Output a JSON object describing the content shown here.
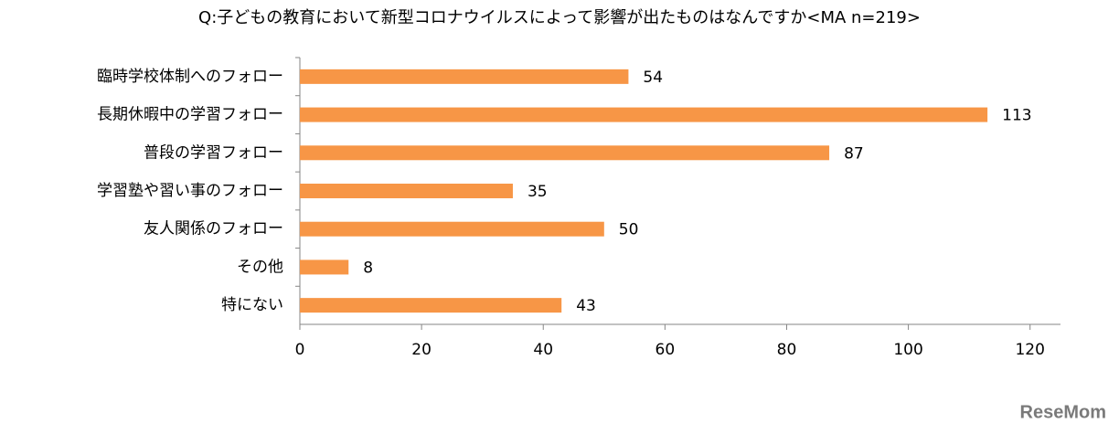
{
  "chart_data": {
    "type": "hbar",
    "title": "Q:子どもの教育において新型コロナウイルスによって影響が出たものはなんですか<MA n=219>",
    "categories": [
      "臨時学校体制へのフォロー",
      "長期休暇中の学習フォロー",
      "普段の学習フォロー",
      "学習塾や習い事のフォロー",
      "友人関係のフォロー",
      "その他",
      "特にない"
    ],
    "values": [
      54,
      113,
      87,
      35,
      50,
      8,
      43
    ],
    "color": "#f79646",
    "xlim": [
      0,
      125
    ],
    "xticks": [
      0,
      20,
      40,
      60,
      80,
      100,
      120
    ],
    "grid": false
  },
  "watermark": "ReseMom"
}
